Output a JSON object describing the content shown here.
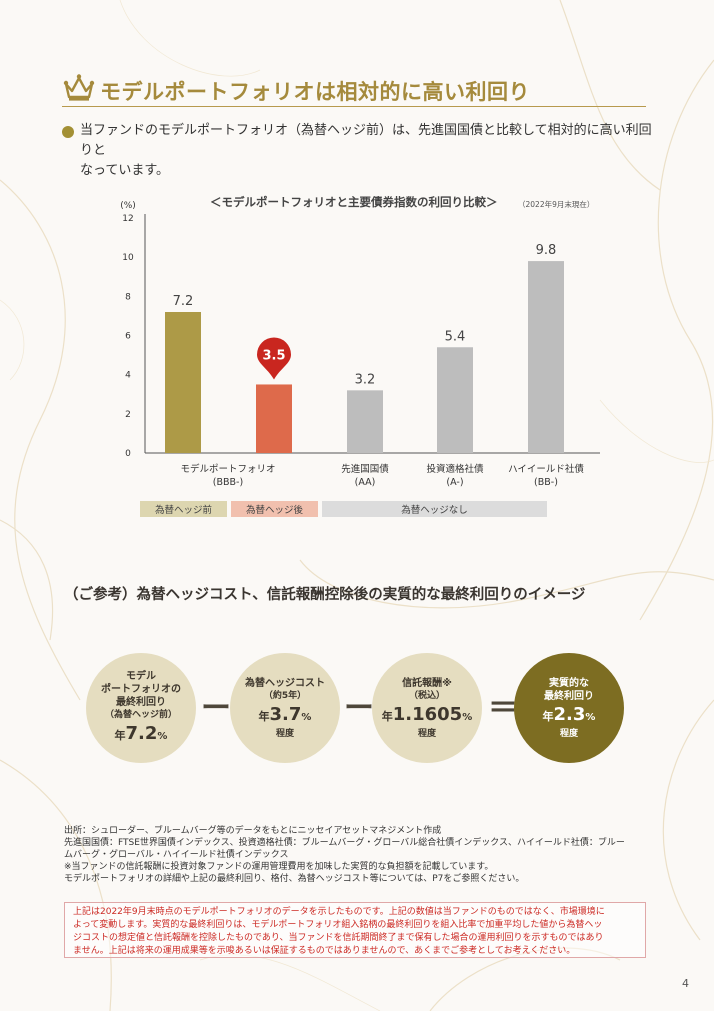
{
  "header": {
    "title": "モデルポートフォリオは相対的に高い利回り",
    "icon": "crown-icon",
    "accent": "#a58a3c"
  },
  "lead": {
    "lines": [
      "当ファンドのモデルポートフォリオ（為替ヘッジ前）は、先進国国債と比較して相対的に高い利回りと",
      "なっています。"
    ]
  },
  "chart": {
    "title": "＜モデルポートフォリオと主要債券指数の利回り比較＞",
    "date": "（2022年9月末現在）"
  },
  "chart_data": {
    "type": "bar",
    "ylabel": "(%)",
    "ylim": [
      0,
      12
    ],
    "yticks": [
      0,
      2,
      4,
      6,
      8,
      10,
      12
    ],
    "grid": false,
    "bars": [
      {
        "value": 7.2,
        "label": "7.2",
        "color": "#ad9a47"
      },
      {
        "value": 3.5,
        "label": "3.5",
        "color": "#de6a4b",
        "highlight": true
      },
      {
        "value": 3.2,
        "label": "3.2",
        "color": "#bdbdbd"
      },
      {
        "value": 5.4,
        "label": "5.4",
        "color": "#bdbdbd"
      },
      {
        "value": 9.8,
        "label": "9.8",
        "color": "#bdbdbd"
      }
    ],
    "categories": [
      {
        "lines": [
          "モデルポートフォリオ",
          "(BBB-)"
        ]
      },
      {
        "lines": [
          "先進国国債",
          "(AA)"
        ]
      },
      {
        "lines": [
          "投資適格社債",
          "(A-)"
        ]
      },
      {
        "lines": [
          "ハイイールド社債",
          "(BB-)"
        ]
      }
    ],
    "tags": [
      {
        "label": "為替ヘッジ前",
        "color": "#ddd6b0"
      },
      {
        "label": "為替ヘッジ後",
        "color": "#f1c0ae"
      },
      {
        "label": "為替ヘッジなし",
        "color": "#dcdcdc"
      }
    ]
  },
  "reference": {
    "title": "（ご参考）為替ヘッジコスト、信託報酬控除後の実質的な最終利回りのイメージ",
    "minus": "ー",
    "equals": "＝",
    "circles": [
      {
        "lines": [
          "モデル",
          "ポートフォリオの",
          "最終利回り"
        ],
        "sub": "（為替ヘッジ前）",
        "pre": "年",
        "num": "7.2",
        "pct": "%",
        "tail": "",
        "color": "#e5ddc0"
      },
      {
        "lines": [
          "為替ヘッジコスト"
        ],
        "sub": "（約5年）",
        "pre": "年",
        "num": "3.7",
        "pct": "%",
        "tail": "程度",
        "color": "#e5ddc0"
      },
      {
        "lines": [
          "信託報酬※"
        ],
        "sub": "（税込）",
        "pre": "年",
        "num": "1.1605",
        "pct": "%",
        "tail": "程度",
        "color": "#e5ddc0"
      },
      {
        "lines": [
          "実質的な",
          "最終利回り"
        ],
        "sub": "",
        "pre": "年",
        "num": "2.3",
        "pct": "%",
        "tail": "程度",
        "color": "#7d6d22"
      }
    ]
  },
  "sources": {
    "lines": [
      "出所：シュローダー、ブルームバーグ等のデータをもとにニッセイアセットマネジメント作成",
      "先進国国債：FTSE世界国債インデックス、投資適格社債：ブルームバーグ・グローバル総合社債インデックス、ハイイールド社債：ブルー",
      "ムバーグ・グローバル・ハイイールド社債インデックス",
      "※当ファンドの信託報酬に投資対象ファンドの運用管理費用を加味した実質的な負担額を記載しています。",
      "モデルポートフォリオの詳細や上記の最終利回り、格付、為替ヘッジコスト等については、P7をご参照ください。"
    ]
  },
  "disclaimer": {
    "lines": [
      "上記は2022年9月末時点のモデルポートフォリオのデータを示したものです。上記の数値は当ファンドのものではなく、市場環境に",
      "よって変動します。実質的な最終利回りは、モデルポートフォリオ組入銘柄の最終利回りを組入比率で加重平均した値から為替ヘッ",
      "ジコストの想定値と信託報酬を控除したものであり、当ファンドを信託期間終了まで保有した場合の運用利回りを示すものではあり",
      "ません。上記は将来の運用成果等を示唆あるいは保証するものではありませんので、あくまでご参考としてお考えください。"
    ]
  },
  "page": {
    "number": "4"
  }
}
